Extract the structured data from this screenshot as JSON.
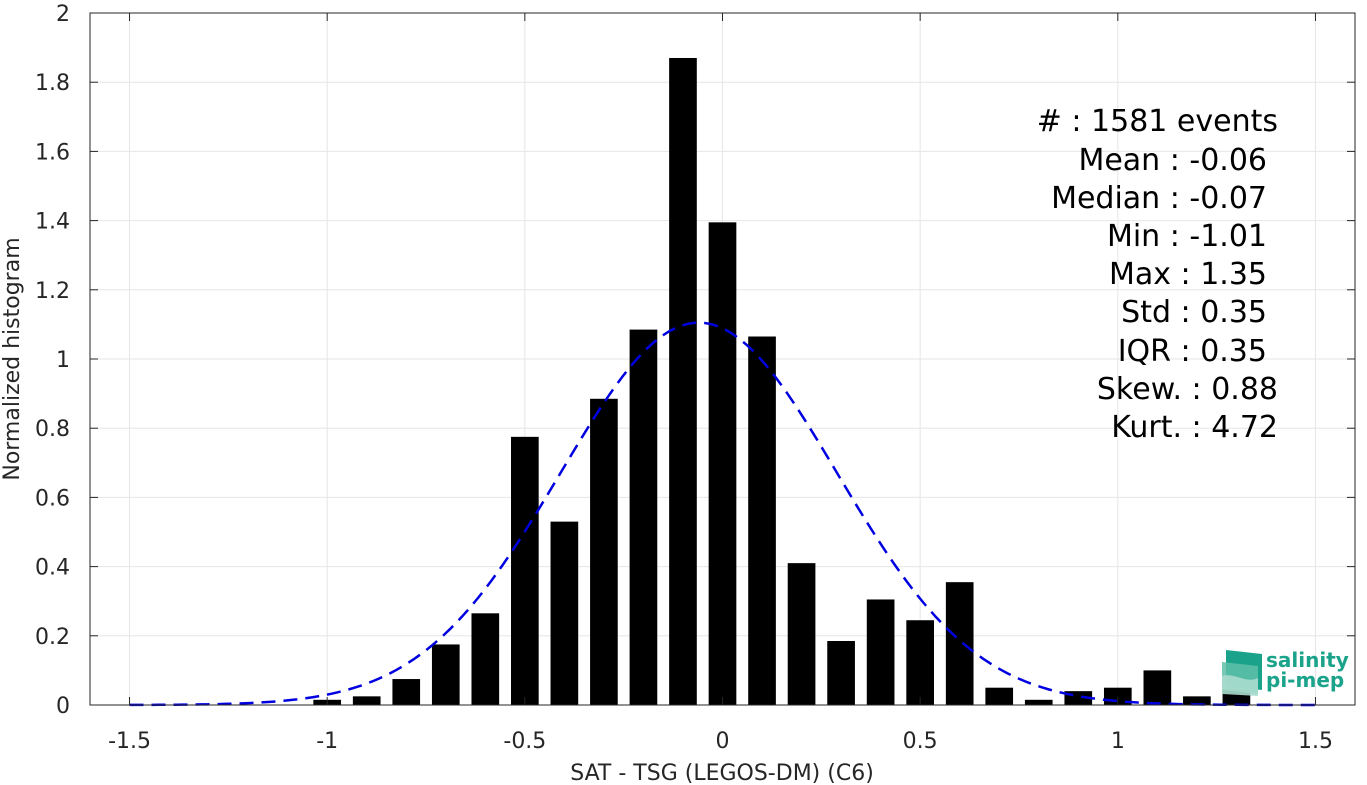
{
  "chart_data": {
    "type": "bar",
    "xlabel": "SAT - TSG (LEGOS-DM) (C6)",
    "ylabel": "Normalized histogram",
    "xlim": [
      -1.6,
      1.6
    ],
    "ylim": [
      0,
      2
    ],
    "grid": true,
    "x_ticks": [
      "-1.5",
      "-1",
      "-0.5",
      "0",
      "0.5",
      "1",
      "1.5"
    ],
    "x_tick_values": [
      -1.5,
      -1,
      -0.5,
      0,
      0.5,
      1,
      1.5
    ],
    "y_ticks": [
      "0",
      "0.2",
      "0.4",
      "0.6",
      "0.8",
      "1",
      "1.2",
      "1.4",
      "1.6",
      "1.8",
      "2"
    ],
    "y_tick_values": [
      0,
      0.2,
      0.4,
      0.6,
      0.8,
      1.0,
      1.2,
      1.4,
      1.6,
      1.8,
      2.0
    ],
    "bar_width": 0.07,
    "bars": {
      "x": [
        -1.0,
        -0.9,
        -0.8,
        -0.7,
        -0.6,
        -0.5,
        -0.4,
        -0.3,
        -0.2,
        -0.1,
        0.0,
        0.1,
        0.2,
        0.3,
        0.4,
        0.5,
        0.6,
        0.7,
        0.8,
        0.9,
        1.0,
        1.1,
        1.2,
        1.3
      ],
      "values": [
        0.015,
        0.025,
        0.075,
        0.175,
        0.265,
        0.775,
        0.53,
        0.885,
        1.085,
        1.87,
        1.395,
        1.065,
        0.41,
        0.185,
        0.305,
        0.245,
        0.355,
        0.05,
        0.015,
        0.04,
        0.05,
        0.1,
        0.025,
        0.045
      ],
      "color": "#000000"
    },
    "fit_curve": {
      "type": "normal",
      "style": "dashed",
      "color": "#0000e0",
      "mean": -0.06,
      "std": 0.35,
      "peak": 1.105,
      "x_range": [
        -1.5,
        1.5
      ]
    },
    "stats_box": {
      "lines": [
        "#  : 1581 events",
        "Mean : -0.06",
        "Median : -0.07",
        "Min : -1.01",
        "Max : 1.35",
        "Std : 0.35",
        "IQR : 0.35",
        "Skew. : 0.88",
        "Kurt. : 4.72"
      ]
    }
  },
  "logo": {
    "line1": "salinity",
    "line2": "pi-mep",
    "color": "#1aa38a"
  }
}
